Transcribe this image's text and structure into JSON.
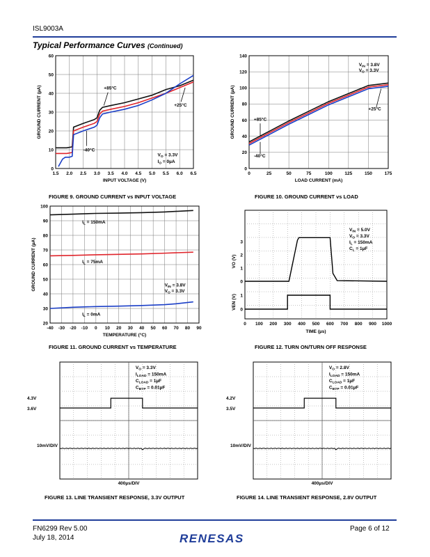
{
  "header": {
    "part": "ISL9003A"
  },
  "section": {
    "title": "Typical Performance Curves",
    "suffix": "(Continued)"
  },
  "figures": {
    "fig9": {
      "caption": "FIGURE 9.  GROUND CURRENT vs INPUT VOLTAGE",
      "xlabel": "INPUT VOLTAGE (V)",
      "ylabel": "GROUND CURRENT (µA)",
      "xticks": [
        "1.5",
        "2.0",
        "2.5",
        "3.0",
        "3.5",
        "4.0",
        "4.5",
        "5.0",
        "5.5",
        "6.0",
        "6.5"
      ],
      "yticks": [
        "0",
        "10",
        "20",
        "30",
        "40",
        "50",
        "60"
      ],
      "xlim": [
        1.5,
        6.5
      ],
      "ylim": [
        0,
        60
      ],
      "annotations": {
        "hot": "+85°C",
        "room": "+25°C",
        "cold": "-40°C",
        "cond1": "VO = 3.3V",
        "cond2": "IO = 0µA"
      },
      "series": [
        {
          "color": "#111111",
          "x": [
            1.5,
            1.9,
            2.1,
            2.15,
            2.5,
            2.9,
            3.0,
            3.1,
            3.2,
            3.5,
            4.0,
            4.5,
            5.0,
            5.5,
            6.0,
            6.5
          ],
          "y": [
            11,
            11,
            11.5,
            22,
            24,
            26,
            27,
            31,
            32.5,
            33.5,
            35,
            37,
            39,
            42,
            44,
            47
          ]
        },
        {
          "color": "#e0242b",
          "x": [
            1.5,
            1.9,
            2.1,
            2.15,
            2.5,
            2.9,
            3.0,
            3.1,
            3.2,
            3.5,
            4.0,
            4.5,
            5.0,
            5.5,
            6.0,
            6.5
          ],
          "y": [
            8,
            8,
            8.5,
            20,
            22,
            24,
            25,
            29,
            30.5,
            31.5,
            33,
            35,
            37.5,
            40,
            43,
            46
          ]
        },
        {
          "color": "#1a3ec7",
          "x": [
            1.6,
            1.75,
            1.85,
            2.0,
            2.1,
            2.15,
            2.5,
            2.9,
            3.0,
            3.1,
            3.2,
            3.5,
            4.0,
            4.5,
            5.0,
            5.5,
            6.0,
            6.5
          ],
          "y": [
            1,
            5,
            6,
            6,
            6.5,
            18,
            20,
            22,
            23,
            27,
            29,
            30,
            31.5,
            33.5,
            36.5,
            40,
            45,
            49.5
          ]
        }
      ]
    },
    "fig10": {
      "caption": "FIGURE 10.  GROUND CURRENT vs LOAD",
      "xlabel": "LOAD CURRENT (mA)",
      "ylabel": "GROUND CURRENT (µA)",
      "xticks": [
        "0",
        "25",
        "50",
        "75",
        "100",
        "125",
        "150",
        "175"
      ],
      "yticks": [
        "0",
        "20",
        "40",
        "60",
        "80",
        "100",
        "120",
        "140"
      ],
      "xlim": [
        0,
        175
      ],
      "ylim": [
        0,
        140
      ],
      "annotations": {
        "cond1": "VIN = 3.8V",
        "cond2": "VO = 3.3V",
        "room": "+25°C",
        "hot": "+85°C",
        "cold": "-40°C"
      },
      "series": [
        {
          "color": "#111111",
          "x": [
            0,
            25,
            50,
            75,
            100,
            125,
            150,
            175
          ],
          "y": [
            33,
            46,
            59,
            71,
            83,
            93,
            103,
            106
          ]
        },
        {
          "color": "#e0242b",
          "x": [
            0,
            25,
            50,
            75,
            100,
            125,
            150,
            175
          ],
          "y": [
            31,
            44,
            57,
            69,
            81,
            91,
            101,
            104
          ]
        },
        {
          "color": "#1a3ec7",
          "x": [
            0,
            25,
            50,
            75,
            100,
            125,
            150,
            175
          ],
          "y": [
            29,
            42,
            55,
            67,
            79,
            89,
            99,
            102
          ]
        }
      ]
    },
    "fig11": {
      "caption": "FIGURE 11.  GROUND CURRENT vs TEMPERATURE",
      "xlabel": "TEMPERATURE (°C)",
      "ylabel": "GROUND CURRENT (µA)",
      "xticks": [
        "-40",
        "-30",
        "-20",
        "-10",
        "0",
        "10",
        "20",
        "30",
        "40",
        "50",
        "60",
        "70",
        "80",
        "90"
      ],
      "yticks": [
        "20",
        "30",
        "40",
        "50",
        "60",
        "70",
        "80",
        "90",
        "100"
      ],
      "xlim": [
        -40,
        90
      ],
      "ylim": [
        20,
        100
      ],
      "annotations": {
        "l150": "IL = 150mA",
        "l75": "IL = 75mA",
        "l0": "IL = 0mA",
        "cond1": "VIN = 3.8V",
        "cond2": "VO = 3.3V"
      },
      "series": [
        {
          "color": "#111111",
          "x": [
            -40,
            -20,
            0,
            20,
            40,
            60,
            85
          ],
          "y": [
            94,
            94.5,
            95,
            95.2,
            95.5,
            96,
            97
          ]
        },
        {
          "color": "#e0242b",
          "x": [
            -40,
            -20,
            0,
            20,
            40,
            60,
            85
          ],
          "y": [
            66,
            66.3,
            66.7,
            67,
            67.3,
            67.8,
            68.5
          ]
        },
        {
          "color": "#1a3ec7",
          "x": [
            -40,
            -20,
            0,
            20,
            40,
            60,
            70,
            85
          ],
          "y": [
            30,
            30.8,
            31.3,
            31.6,
            32,
            32.6,
            33.2,
            34.5
          ]
        }
      ]
    },
    "fig12": {
      "caption": "FIGURE 12.  TURN ON/TURN OFF RESPONSE",
      "xlabel": "TIME (µs)",
      "ylabel_top": "VO (V)",
      "ylabel_bottom": "VEN (V)",
      "xticks": [
        "0",
        "100",
        "200",
        "300",
        "400",
        "500",
        "600",
        "700",
        "800",
        "900",
        "1000"
      ],
      "yticks_top": [
        "0",
        "1",
        "2",
        "3"
      ],
      "yticks_bottom": [
        "0",
        "1"
      ],
      "cond": [
        "VIN = 5.0V",
        "VO = 3.3V",
        "IL = 150mA",
        "CL = 1µF"
      ]
    },
    "fig13": {
      "caption": "FIGURE 13.  LINE TRANSIENT RESPONSE, 3.3V OUTPUT",
      "level_high": "4.3V",
      "level_low": "3.6V",
      "div": "10mV/DIV",
      "time": "400µs/DIV",
      "cond": [
        "VO = 3.3V",
        "ILOAD = 150mA",
        "CLOAD = 1µF",
        "CBYP = 0.01µF"
      ]
    },
    "fig14": {
      "caption": "FIGURE 14.  LINE TRANSIENT RESPONSE, 2.8V OUTPUT",
      "level_high": "4.2V",
      "level_low": "3.5V",
      "div": "10mV/DIV",
      "time": "400µs/DIV",
      "cond": [
        "VO = 2.8V",
        "ILOAD = 150mA",
        "CLOAD = 1µF",
        "CBYP = 0.01µF"
      ]
    }
  },
  "footer": {
    "doc": "FN6299  Rev 5.00",
    "date": "July 18, 2014",
    "page": "Page 6 of 12",
    "logo": "RENESAS"
  },
  "colors": {
    "rule": "#1f3d99"
  }
}
